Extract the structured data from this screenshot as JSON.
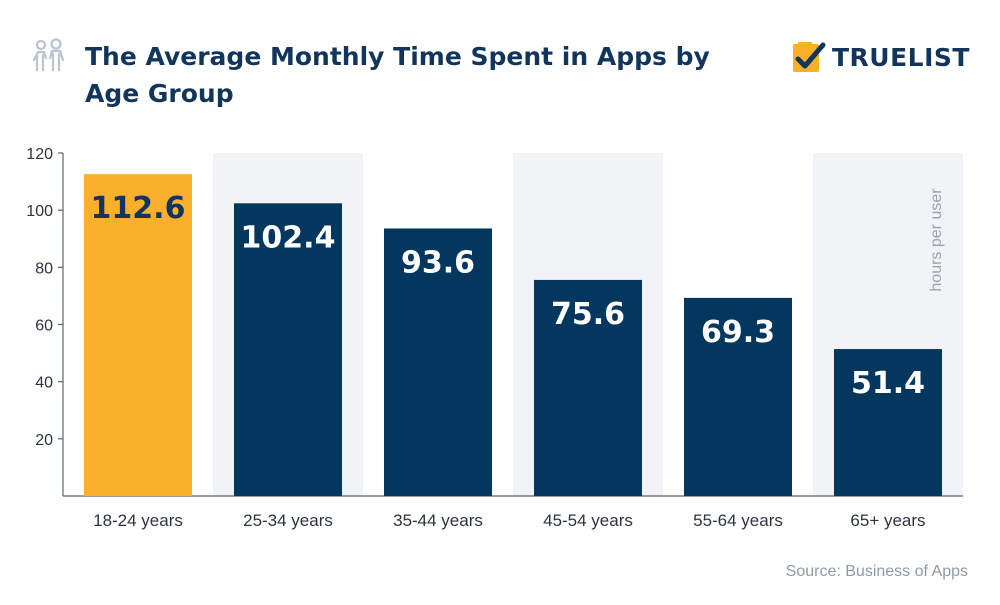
{
  "header": {
    "title": "The Average Monthly Time Spent in Apps by Age Group",
    "icon": "people-icon"
  },
  "logo": {
    "text": "TRUELIST",
    "icon": "checklist-icon"
  },
  "colors": {
    "highlight": "#fbb02d",
    "bar": "#04375e",
    "text": "#12355b",
    "band": "#f2f3f6"
  },
  "chart_data": {
    "type": "bar",
    "categories": [
      "18-24 years",
      "25-34 years",
      "35-44 years",
      "45-54 years",
      "55-64 years",
      "65+ years"
    ],
    "values": [
      112.6,
      102.4,
      93.6,
      75.6,
      69.3,
      51.4
    ],
    "value_labels": [
      "112.6",
      "102.4",
      "93.6",
      "75.6",
      "69.3",
      "51.4"
    ],
    "ylabel": "hours per user",
    "ylim": [
      0,
      120
    ],
    "yticks": [
      20,
      40,
      60,
      80,
      100,
      120
    ],
    "highlight_index": 0,
    "grid": false
  },
  "source": "Source: Business of Apps"
}
